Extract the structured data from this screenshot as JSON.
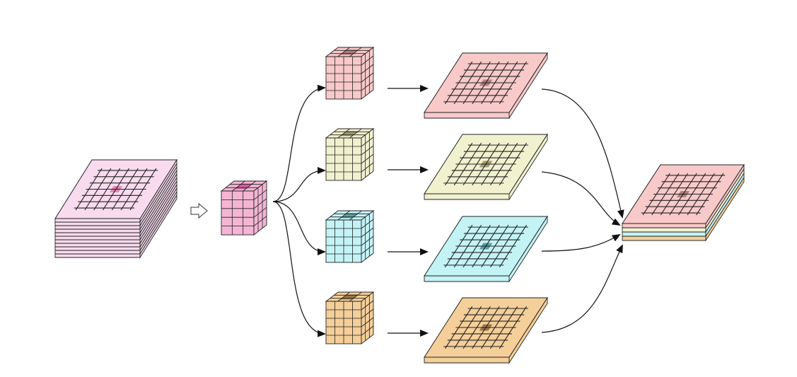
{
  "colors": {
    "input": "#f8dbee",
    "input_center": "#e483b3",
    "kernel": "#f4b5d4",
    "kernel_center": "#d65f9f",
    "stroke": "#222222",
    "background": "#ffffff",
    "branches": [
      {
        "fill": "#f8c9c9",
        "center": "#b07c7c"
      },
      {
        "fill": "#f1f1cf",
        "center": "#a39b6f"
      },
      {
        "fill": "#c4f3f6",
        "center": "#5a9ea2"
      },
      {
        "fill": "#f5cf99",
        "center": "#9c7448"
      }
    ]
  },
  "structure": {
    "input_layers": 11,
    "grid_lines": 7,
    "branch_count": 4,
    "output_layers": 4
  },
  "icons": {
    "transition": "hollow-right-arrow",
    "flow": "filled-arrowhead"
  }
}
